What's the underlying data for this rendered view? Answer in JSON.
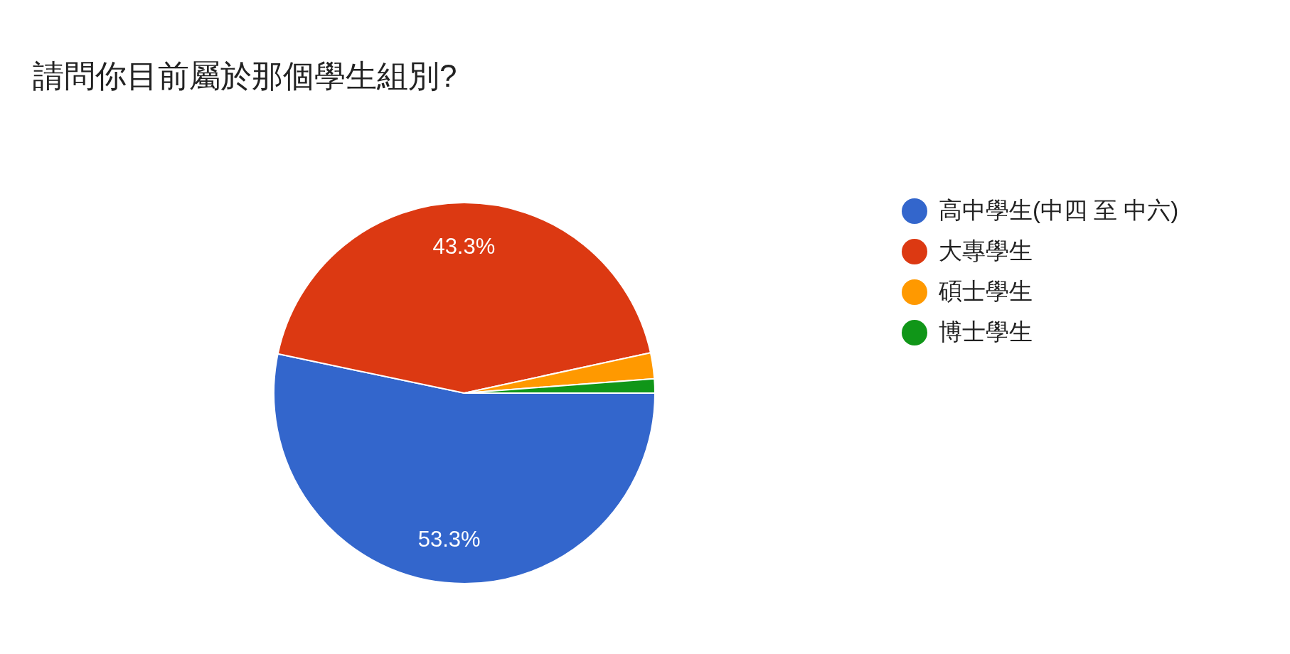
{
  "chart_data": {
    "type": "pie",
    "title": "請問你目前屬於那個學生組別?",
    "categories": [
      "高中學生(中四 至 中六)",
      "大專學生",
      "碩士學生",
      "博士學生"
    ],
    "values": [
      53.3,
      43.3,
      2.2,
      1.2
    ],
    "colors": [
      "#3366cc",
      "#dc3912",
      "#ff9900",
      "#109618"
    ],
    "value_labels": [
      "53.3%",
      "43.3%",
      null,
      null
    ],
    "legend": "top right"
  }
}
